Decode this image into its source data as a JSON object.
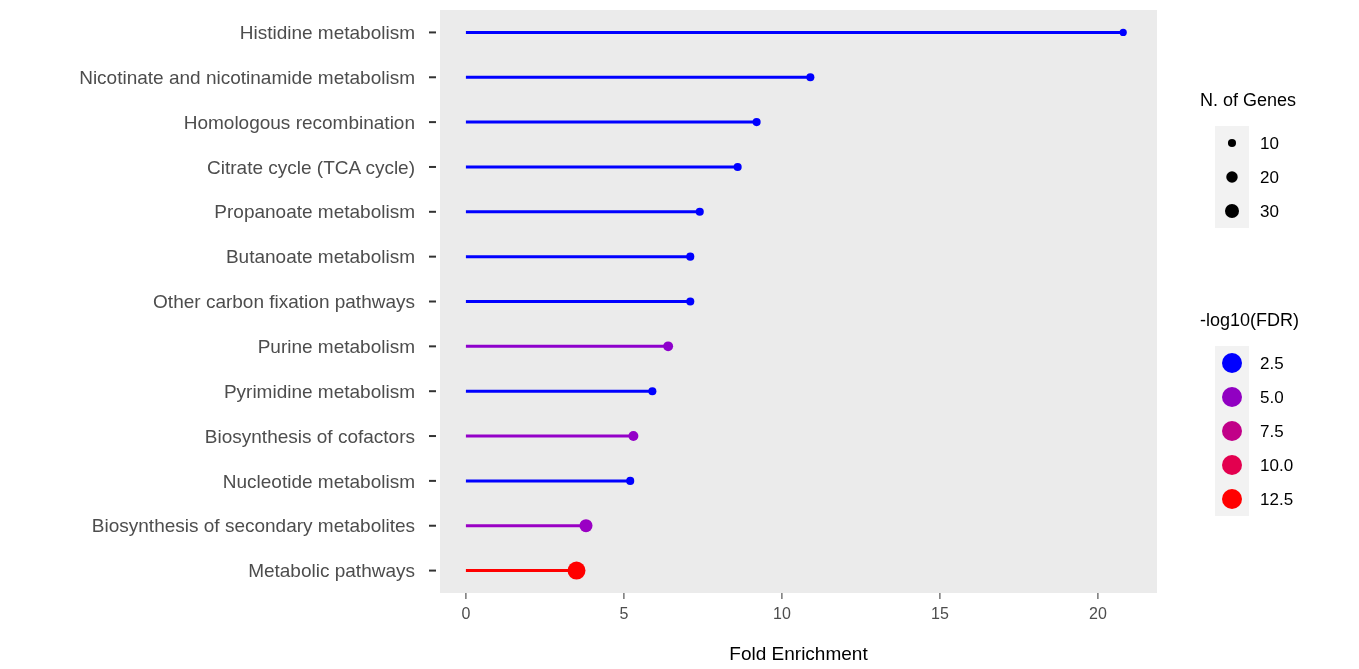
{
  "chart_data": {
    "type": "lollipop",
    "orientation": "horizontal",
    "categories": [
      "Histidine metabolism",
      "Nicotinate and nicotinamide metabolism",
      "Homologous recombination",
      "Citrate cycle (TCA cycle)",
      "Propanoate metabolism",
      "Butanoate metabolism",
      "Other carbon fixation pathways",
      "Purine metabolism",
      "Pyrimidine metabolism",
      "Biosynthesis of cofactors",
      "Nucleotide metabolism",
      "Biosynthesis of secondary metabolites",
      "Metabolic pathways"
    ],
    "values": [
      20.8,
      10.9,
      9.2,
      8.6,
      7.4,
      7.1,
      7.1,
      6.4,
      5.9,
      5.3,
      5.2,
      3.8,
      3.5
    ],
    "sizes": [
      8,
      10,
      10,
      10,
      10,
      10,
      10,
      15,
      10,
      15,
      10,
      26,
      49
    ],
    "size_legend": [
      10,
      20,
      30
    ],
    "colors": [
      "#0000ff",
      "#0000ff",
      "#0000ff",
      "#0000ff",
      "#0000ff",
      "#0000ff",
      "#0000ff",
      "#8e00cc",
      "#0000ff",
      "#9400c8",
      "#0000ff",
      "#9a00c4",
      "#ff0000"
    ],
    "cticks": [
      {
        "value": 2.5,
        "label": "2.5"
      },
      {
        "value": 5,
        "label": "5.0"
      },
      {
        "value": 7.5,
        "label": "7.5"
      },
      {
        "value": 10,
        "label": "10.0"
      },
      {
        "value": 12.5,
        "label": "12.5"
      }
    ],
    "xlim": [
      -0.82,
      21.87
    ],
    "xticks": [
      0,
      5,
      10,
      15,
      20
    ],
    "xlabel": "Fold Enrichment",
    "legend_title": "N. of Genes",
    "clabel": "-log10(FDR)"
  }
}
